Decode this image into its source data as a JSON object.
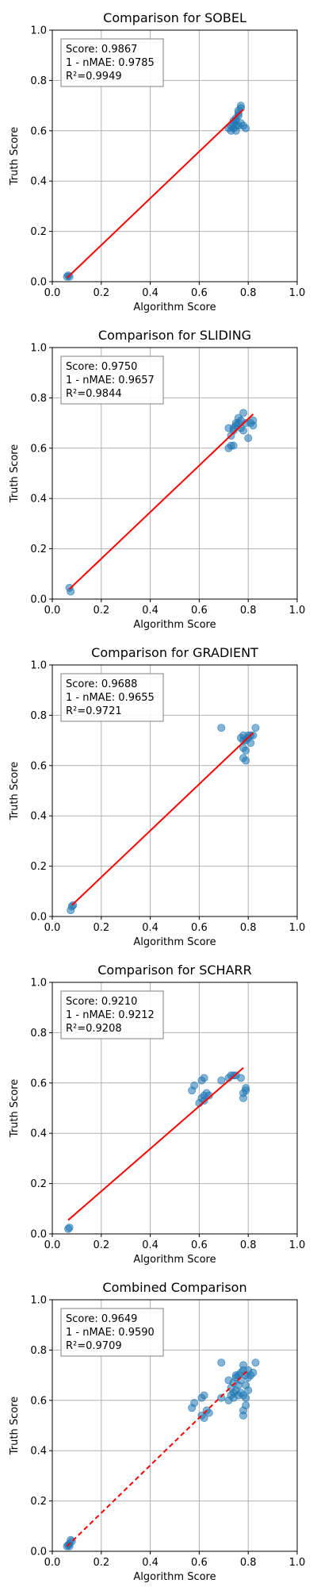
{
  "chart_data": [
    {
      "type": "scatter",
      "title": "Comparison for SOBEL",
      "xlabel": "Algorithm Score",
      "ylabel": "Truth Score",
      "xlim": [
        0,
        1
      ],
      "ylim": [
        0,
        1
      ],
      "xticks": [
        "0.0",
        "0.2",
        "0.4",
        "0.6",
        "0.8",
        "1.0"
      ],
      "yticks": [
        "0.0",
        "0.2",
        "0.4",
        "0.6",
        "0.8",
        "1.0"
      ],
      "grid": true,
      "stats": [
        "Score: 0.9867",
        "1 - nMAE: 0.9785",
        "R²=0.9949"
      ],
      "points": [
        [
          0.06,
          0.02
        ],
        [
          0.065,
          0.025
        ],
        [
          0.07,
          0.02
        ],
        [
          0.72,
          0.61
        ],
        [
          0.73,
          0.62
        ],
        [
          0.74,
          0.63
        ],
        [
          0.74,
          0.61
        ],
        [
          0.75,
          0.62
        ],
        [
          0.75,
          0.64
        ],
        [
          0.75,
          0.65
        ],
        [
          0.76,
          0.66
        ],
        [
          0.76,
          0.67
        ],
        [
          0.76,
          0.68
        ],
        [
          0.77,
          0.69
        ],
        [
          0.77,
          0.7
        ],
        [
          0.74,
          0.64
        ],
        [
          0.73,
          0.6
        ],
        [
          0.77,
          0.63
        ],
        [
          0.78,
          0.62
        ],
        [
          0.79,
          0.61
        ],
        [
          0.76,
          0.62
        ],
        [
          0.75,
          0.6
        ]
      ],
      "fit": {
        "x": [
          0.06,
          0.78
        ],
        "y": [
          0.015,
          0.685
        ],
        "dashed": false
      }
    },
    {
      "type": "scatter",
      "title": "Comparison for SLIDING",
      "xlabel": "Algorithm Score",
      "ylabel": "Truth Score",
      "xlim": [
        0,
        1
      ],
      "ylim": [
        0,
        1
      ],
      "xticks": [
        "0.0",
        "0.2",
        "0.4",
        "0.6",
        "0.8",
        "1.0"
      ],
      "yticks": [
        "0.0",
        "0.2",
        "0.4",
        "0.6",
        "0.8",
        "1.0"
      ],
      "grid": true,
      "stats": [
        "Score: 0.9750",
        "1 - nMAE: 0.9657",
        "R²=0.9844"
      ],
      "points": [
        [
          0.07,
          0.045
        ],
        [
          0.075,
          0.03
        ],
        [
          0.72,
          0.6
        ],
        [
          0.73,
          0.61
        ],
        [
          0.73,
          0.65
        ],
        [
          0.74,
          0.67
        ],
        [
          0.74,
          0.68
        ],
        [
          0.75,
          0.69
        ],
        [
          0.75,
          0.7
        ],
        [
          0.76,
          0.7
        ],
        [
          0.77,
          0.68
        ],
        [
          0.77,
          0.71
        ],
        [
          0.78,
          0.74
        ],
        [
          0.79,
          0.7
        ],
        [
          0.8,
          0.64
        ],
        [
          0.81,
          0.7
        ],
        [
          0.82,
          0.71
        ],
        [
          0.82,
          0.69
        ],
        [
          0.72,
          0.68
        ],
        [
          0.74,
          0.61
        ],
        [
          0.76,
          0.72
        ],
        [
          0.78,
          0.67
        ]
      ],
      "fit": {
        "x": [
          0.07,
          0.82
        ],
        "y": [
          0.04,
          0.735
        ],
        "dashed": false
      }
    },
    {
      "type": "scatter",
      "title": "Comparison for GRADIENT",
      "xlabel": "Algorithm Score",
      "ylabel": "Truth Score",
      "xlim": [
        0,
        1
      ],
      "ylim": [
        0,
        1
      ],
      "xticks": [
        "0.0",
        "0.2",
        "0.4",
        "0.6",
        "0.8",
        "1.0"
      ],
      "yticks": [
        "0.0",
        "0.2",
        "0.4",
        "0.6",
        "0.8",
        "1.0"
      ],
      "grid": true,
      "stats": [
        "Score: 0.9688",
        "1 - nMAE: 0.9655",
        "R²=0.9721"
      ],
      "points": [
        [
          0.08,
          0.04
        ],
        [
          0.085,
          0.045
        ],
        [
          0.075,
          0.025
        ],
        [
          0.69,
          0.75
        ],
        [
          0.77,
          0.71
        ],
        [
          0.78,
          0.72
        ],
        [
          0.78,
          0.7
        ],
        [
          0.79,
          0.66
        ],
        [
          0.78,
          0.63
        ],
        [
          0.79,
          0.62
        ],
        [
          0.8,
          0.72
        ],
        [
          0.8,
          0.71
        ],
        [
          0.81,
          0.72
        ],
        [
          0.82,
          0.72
        ],
        [
          0.83,
          0.75
        ],
        [
          0.78,
          0.67
        ],
        [
          0.79,
          0.7
        ],
        [
          0.81,
          0.69
        ]
      ],
      "fit": {
        "x": [
          0.08,
          0.82
        ],
        "y": [
          0.045,
          0.73
        ],
        "dashed": false
      }
    },
    {
      "type": "scatter",
      "title": "Comparison for SCHARR",
      "xlabel": "Algorithm Score",
      "ylabel": "Truth Score",
      "xlim": [
        0,
        1
      ],
      "ylim": [
        0,
        1
      ],
      "xticks": [
        "0.0",
        "0.2",
        "0.4",
        "0.6",
        "0.8",
        "1.0"
      ],
      "yticks": [
        "0.0",
        "0.2",
        "0.4",
        "0.6",
        "0.8",
        "1.0"
      ],
      "grid": true,
      "stats": [
        "Score: 0.9210",
        "1 - nMAE: 0.9212",
        "R²=0.9208"
      ],
      "points": [
        [
          0.065,
          0.02
        ],
        [
          0.07,
          0.025
        ],
        [
          0.57,
          0.57
        ],
        [
          0.58,
          0.59
        ],
        [
          0.61,
          0.61
        ],
        [
          0.62,
          0.62
        ],
        [
          0.61,
          0.54
        ],
        [
          0.62,
          0.53
        ],
        [
          0.62,
          0.55
        ],
        [
          0.63,
          0.56
        ],
        [
          0.64,
          0.55
        ],
        [
          0.69,
          0.61
        ],
        [
          0.72,
          0.62
        ],
        [
          0.73,
          0.63
        ],
        [
          0.74,
          0.63
        ],
        [
          0.75,
          0.63
        ],
        [
          0.78,
          0.54
        ],
        [
          0.78,
          0.56
        ],
        [
          0.79,
          0.58
        ],
        [
          0.79,
          0.57
        ],
        [
          0.77,
          0.62
        ],
        [
          0.6,
          0.52
        ]
      ],
      "fit": {
        "x": [
          0.065,
          0.78
        ],
        "y": [
          0.055,
          0.66
        ],
        "dashed": false
      }
    },
    {
      "type": "scatter",
      "title": "Combined Comparison",
      "xlabel": "Algorithm Score",
      "ylabel": "Truth Score",
      "xlim": [
        0,
        1
      ],
      "ylim": [
        0,
        1
      ],
      "xticks": [
        "0.0",
        "0.2",
        "0.4",
        "0.6",
        "0.8",
        "1.0"
      ],
      "yticks": [
        "0.0",
        "0.2",
        "0.4",
        "0.6",
        "0.8",
        "1.0"
      ],
      "grid": true,
      "stats": [
        "Score: 0.9649",
        "1 - nMAE: 0.9590",
        "R²=0.9709"
      ],
      "points": [
        [
          0.06,
          0.02
        ],
        [
          0.065,
          0.025
        ],
        [
          0.07,
          0.03
        ],
        [
          0.075,
          0.045
        ],
        [
          0.08,
          0.04
        ],
        [
          0.07,
          0.02
        ],
        [
          0.57,
          0.57
        ],
        [
          0.58,
          0.59
        ],
        [
          0.61,
          0.61
        ],
        [
          0.62,
          0.62
        ],
        [
          0.61,
          0.54
        ],
        [
          0.62,
          0.53
        ],
        [
          0.63,
          0.56
        ],
        [
          0.64,
          0.55
        ],
        [
          0.69,
          0.61
        ],
        [
          0.69,
          0.75
        ],
        [
          0.72,
          0.6
        ],
        [
          0.72,
          0.68
        ],
        [
          0.73,
          0.62
        ],
        [
          0.73,
          0.65
        ],
        [
          0.74,
          0.63
        ],
        [
          0.74,
          0.67
        ],
        [
          0.75,
          0.64
        ],
        [
          0.75,
          0.69
        ],
        [
          0.75,
          0.7
        ],
        [
          0.76,
          0.66
        ],
        [
          0.76,
          0.7
        ],
        [
          0.77,
          0.68
        ],
        [
          0.77,
          0.71
        ],
        [
          0.78,
          0.54
        ],
        [
          0.78,
          0.56
        ],
        [
          0.78,
          0.62
        ],
        [
          0.78,
          0.72
        ],
        [
          0.78,
          0.74
        ],
        [
          0.79,
          0.58
        ],
        [
          0.79,
          0.61
        ],
        [
          0.79,
          0.7
        ],
        [
          0.8,
          0.64
        ],
        [
          0.8,
          0.72
        ],
        [
          0.81,
          0.7
        ],
        [
          0.82,
          0.71
        ],
        [
          0.83,
          0.75
        ],
        [
          0.74,
          0.61
        ],
        [
          0.76,
          0.62
        ],
        [
          0.77,
          0.63
        ],
        [
          0.79,
          0.66
        ],
        [
          0.8,
          0.69
        ]
      ],
      "fit": {
        "x": [
          0.06,
          0.8
        ],
        "y": [
          0.02,
          0.72
        ],
        "dashed": true
      }
    }
  ],
  "colors": {
    "points": "#1f77b4",
    "fit_line": "#ff0000",
    "grid": "#b0b0b0",
    "axes": "#000000"
  }
}
